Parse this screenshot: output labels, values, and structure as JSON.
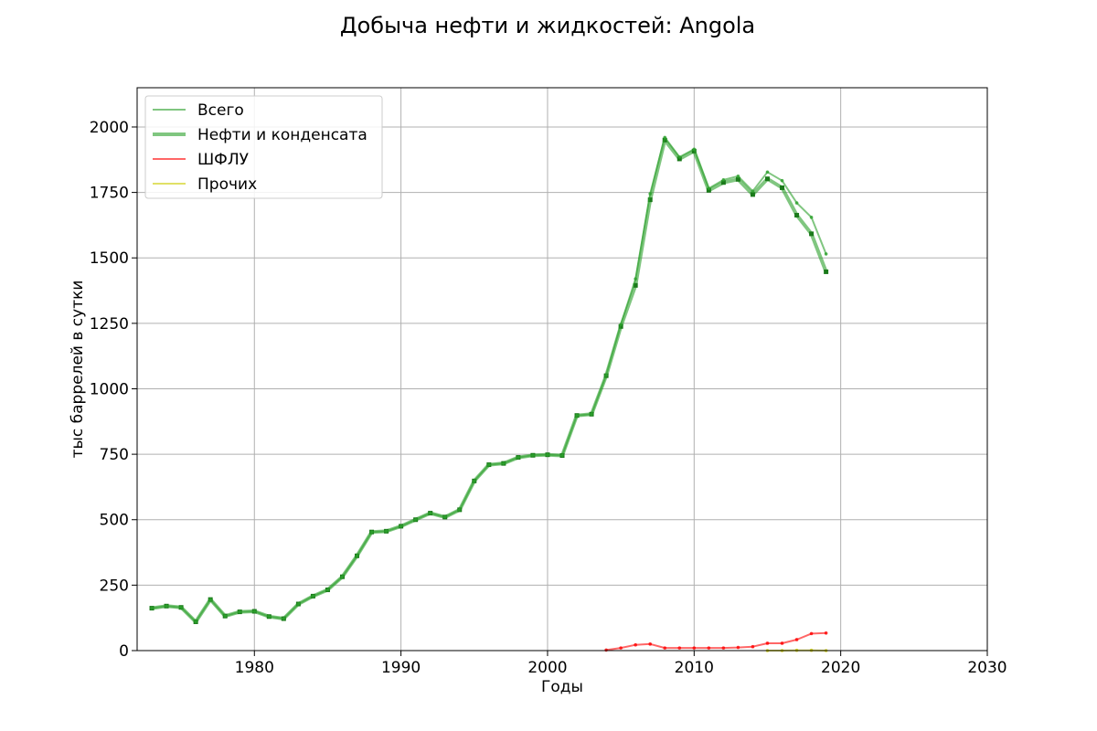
{
  "chart_data": {
    "type": "line",
    "title": "Добыча нефти и жидкостей: Angola",
    "xlabel": "Годы",
    "ylabel": "тыс баррелей в сутки",
    "xlim": [
      1972,
      2030
    ],
    "ylim": [
      0,
      2150
    ],
    "xticks": [
      1980,
      1990,
      2000,
      2010,
      2020,
      2030
    ],
    "yticks": [
      0,
      250,
      500,
      750,
      1000,
      1250,
      1500,
      1750,
      2000
    ],
    "grid": true,
    "legend_position": "top-left",
    "series": [
      {
        "name": "Всего",
        "color": "#2ca02c",
        "style": "thin",
        "x": [
          1973,
          1974,
          1975,
          1976,
          1977,
          1978,
          1979,
          1980,
          1981,
          1982,
          1983,
          1984,
          1985,
          1986,
          1987,
          1988,
          1989,
          1990,
          1991,
          1992,
          1993,
          1994,
          1995,
          1996,
          1997,
          1998,
          1999,
          2000,
          2001,
          2002,
          2003,
          2004,
          2005,
          2006,
          2007,
          2008,
          2009,
          2010,
          2011,
          2012,
          2013,
          2014,
          2015,
          2016,
          2017,
          2018,
          2019
        ],
        "values": [
          162,
          170,
          165,
          110,
          195,
          132,
          148,
          150,
          130,
          122,
          178,
          208,
          232,
          282,
          362,
          453,
          456,
          475,
          500,
          525,
          510,
          538,
          648,
          710,
          715,
          738,
          746,
          748,
          745,
          898,
          903,
          1052,
          1245,
          1420,
          1745,
          1960,
          1885,
          1915,
          1765,
          1798,
          1812,
          1755,
          1828,
          1795,
          1710,
          1655,
          1515
        ]
      },
      {
        "name": "Нефти и конденсата",
        "color": "#2ca02c",
        "style": "thick",
        "x": [
          1973,
          1974,
          1975,
          1976,
          1977,
          1978,
          1979,
          1980,
          1981,
          1982,
          1983,
          1984,
          1985,
          1986,
          1987,
          1988,
          1989,
          1990,
          1991,
          1992,
          1993,
          1994,
          1995,
          1996,
          1997,
          1998,
          1999,
          2000,
          2001,
          2002,
          2003,
          2004,
          2005,
          2006,
          2007,
          2008,
          2009,
          2010,
          2011,
          2012,
          2013,
          2014,
          2015,
          2016,
          2017,
          2018,
          2019
        ],
        "values": [
          162,
          170,
          165,
          110,
          195,
          132,
          148,
          150,
          130,
          122,
          178,
          208,
          232,
          282,
          362,
          453,
          456,
          475,
          500,
          525,
          510,
          538,
          648,
          710,
          715,
          738,
          746,
          748,
          745,
          898,
          903,
          1050,
          1238,
          1395,
          1722,
          1950,
          1878,
          1908,
          1758,
          1788,
          1800,
          1742,
          1802,
          1768,
          1663,
          1592,
          1447
        ]
      },
      {
        "name": "ШФЛУ",
        "color": "#ff0000",
        "style": "thin",
        "x": [
          2004,
          2005,
          2006,
          2007,
          2008,
          2009,
          2010,
          2011,
          2012,
          2013,
          2014,
          2015,
          2016,
          2017,
          2018,
          2019
        ],
        "values": [
          2,
          10,
          22,
          25,
          10,
          10,
          10,
          10,
          10,
          12,
          15,
          28,
          28,
          42,
          65,
          67
        ]
      },
      {
        "name": "Прочих",
        "color": "#cccc00",
        "style": "thin",
        "x": [
          2015,
          2016,
          2017,
          2018,
          2019
        ],
        "values": [
          0,
          0,
          1,
          1,
          0
        ]
      }
    ]
  }
}
